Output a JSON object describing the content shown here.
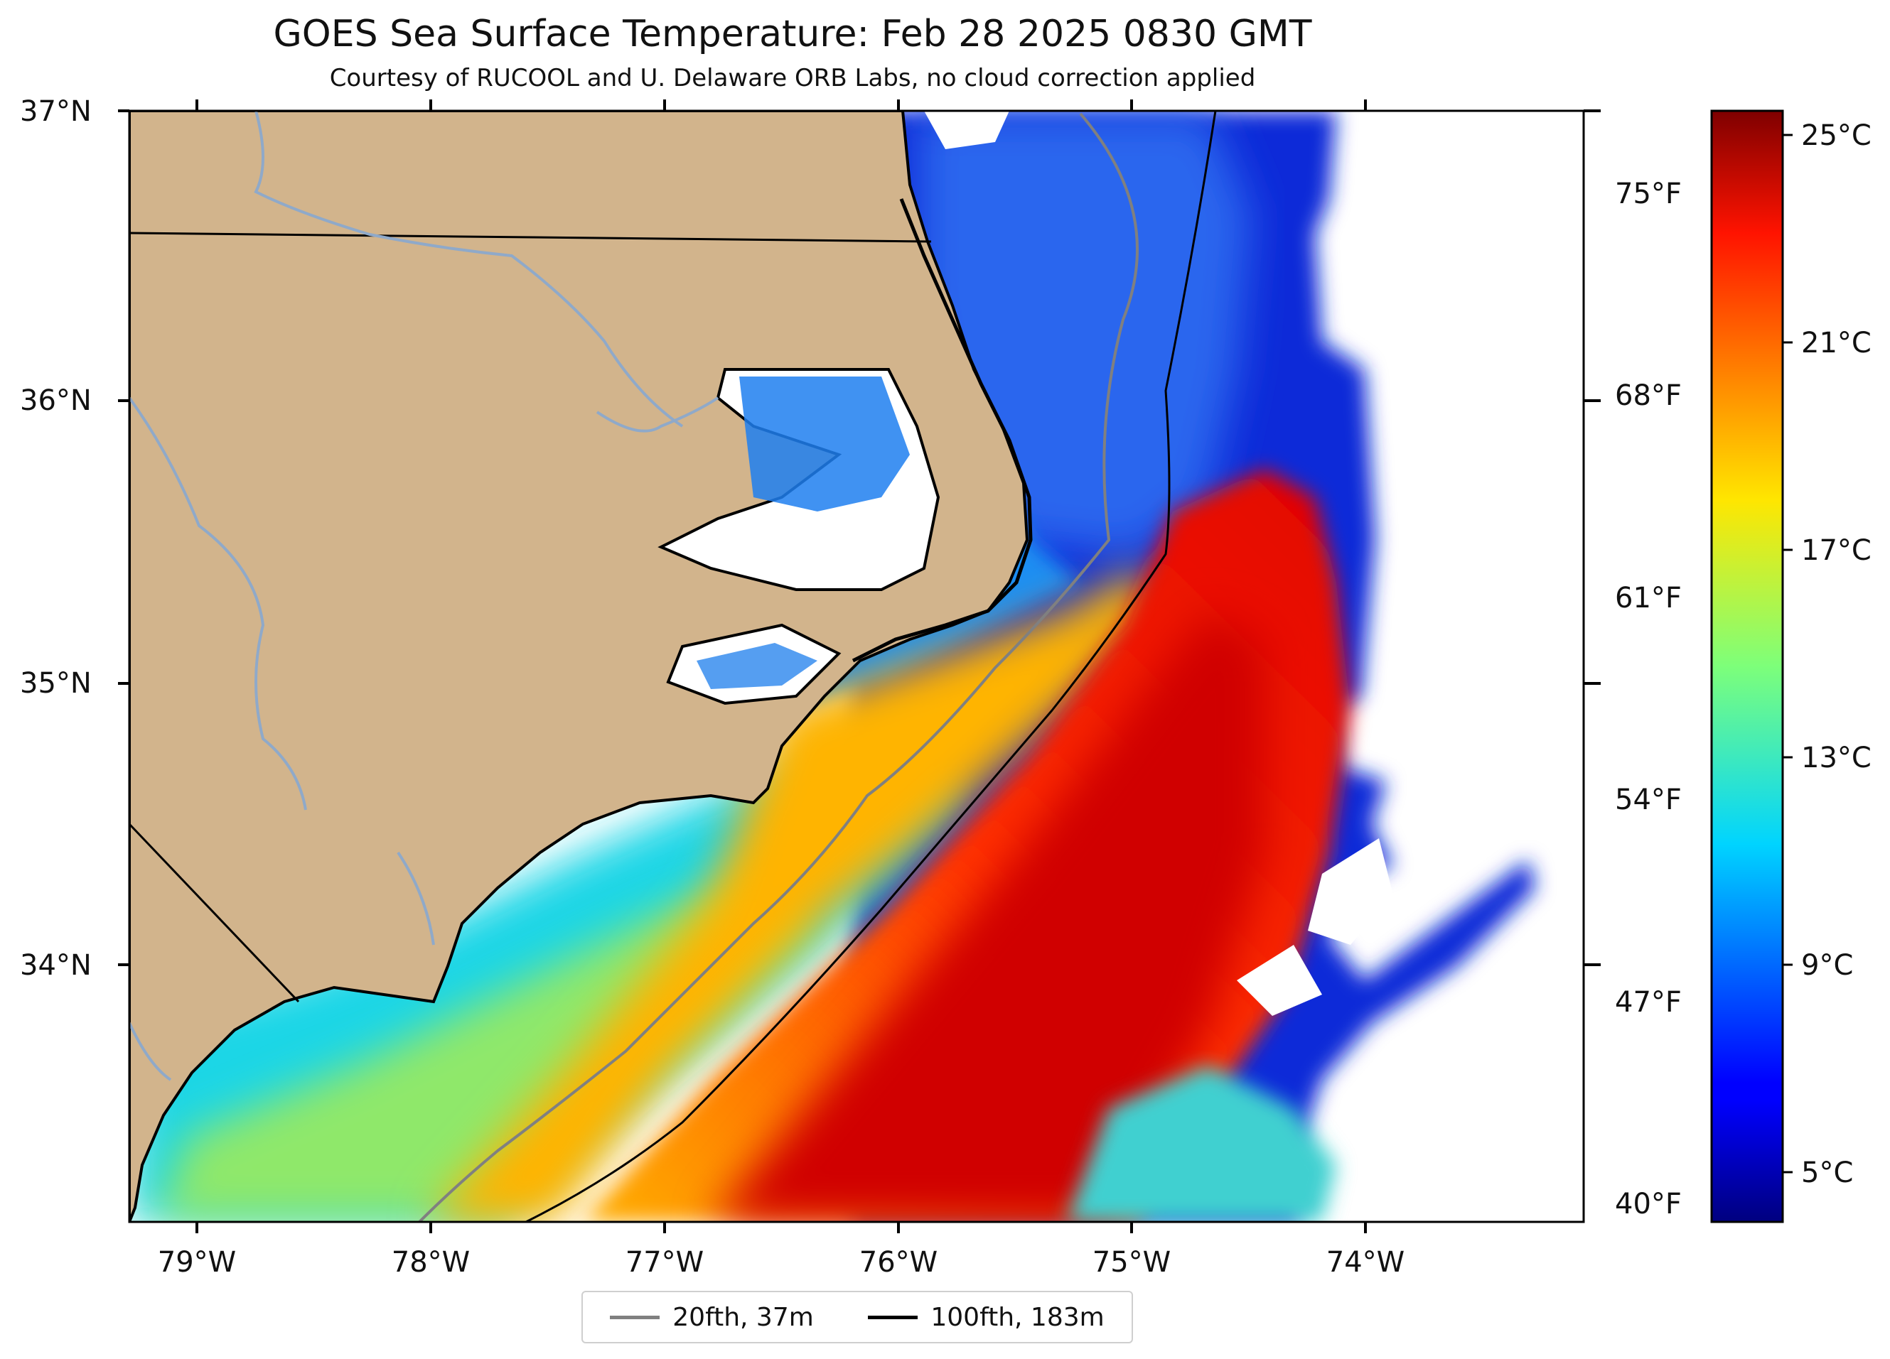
{
  "title": "GOES Sea Surface Temperature: Feb 28 2025 0830 GMT",
  "subtitle": "Courtesy of RUCOOL and U. Delaware ORB Labs, no cloud correction applied",
  "lat_labels": [
    "37°N",
    "36°N",
    "35°N",
    "34°N"
  ],
  "lon_labels": [
    "79°W",
    "78°W",
    "77°W",
    "76°W",
    "75°W",
    "74°W"
  ],
  "fahrenheit_labels": [
    "75°F",
    "68°F",
    "61°F",
    "54°F",
    "47°F",
    "40°F"
  ],
  "colorbar": {
    "labels": [
      "25°C",
      "21°C",
      "17°C",
      "13°C",
      "9°C",
      "5°C"
    ],
    "range_c": [
      3.3,
      25.8
    ],
    "colormap": "jet"
  },
  "legend": [
    {
      "label": "20fth, 37m",
      "color": "#808080"
    },
    {
      "label": "100fth, 183m",
      "color": "#000000"
    }
  ],
  "colors": {
    "land": "#d2b48c",
    "river": "#8fa9c9",
    "coast": "#000000",
    "isobath_20": "#808080",
    "isobath_100": "#000000"
  }
}
